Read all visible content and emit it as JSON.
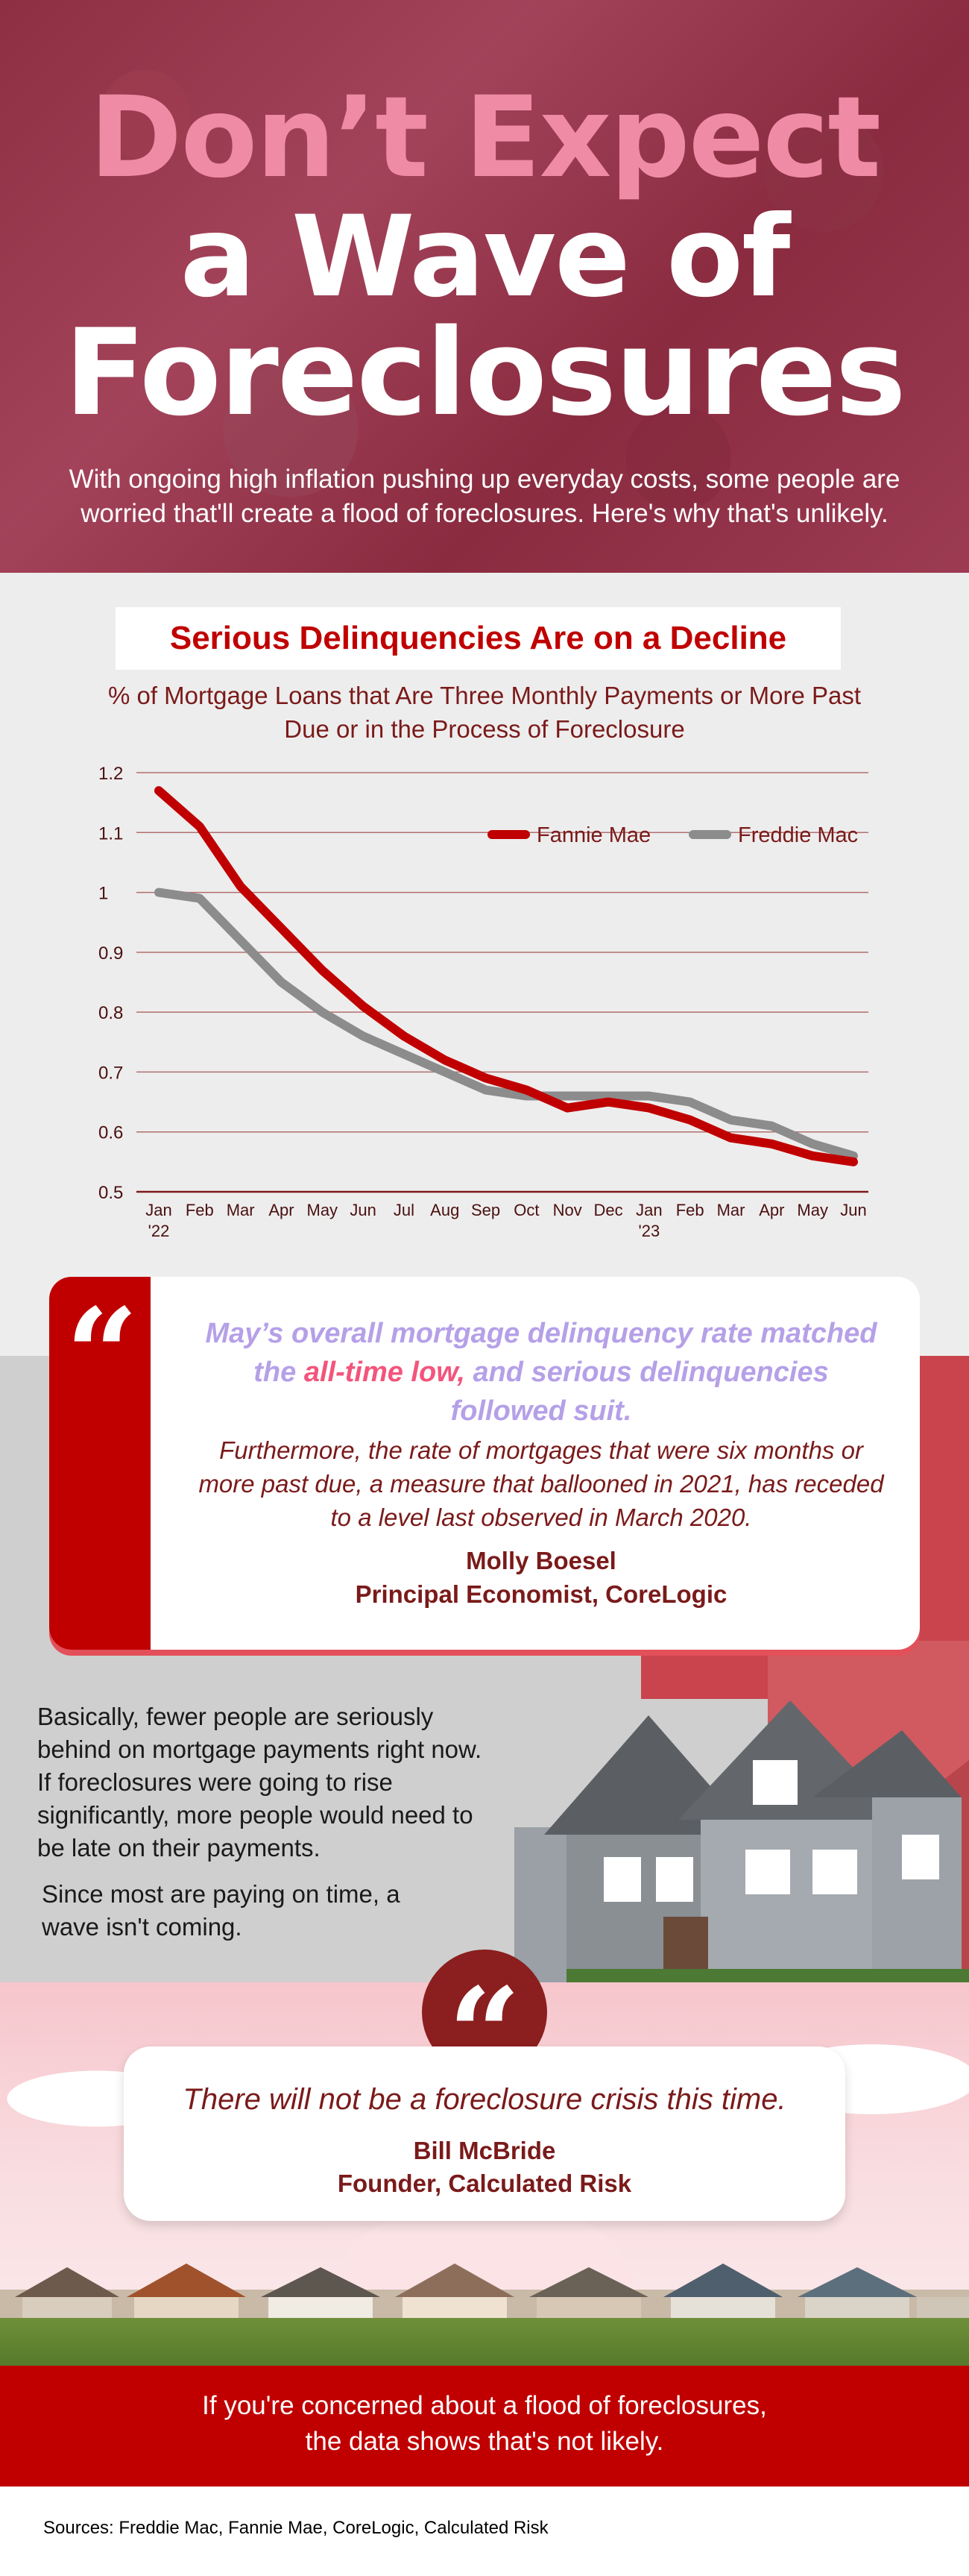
{
  "hero": {
    "title_line1": "Don’t Expect",
    "title_line2": "a Wave of",
    "title_line3": "Foreclosures",
    "subtitle": "With ongoing high inflation pushing up everyday costs, some people are worried that'll create a flood of foreclosures. Here's why that's unlikely."
  },
  "chart_section": {
    "banner": "Serious Delinquencies Are on a Decline",
    "subtitle": "% of Mortgage Loans that Are Three Monthly Payments or More Past Due or in the Process of Foreclosure"
  },
  "chart_data": {
    "type": "line",
    "title": "Serious Delinquencies Are on a Decline",
    "subtitle": "% of Mortgage Loans that Are Three Monthly Payments or More Past Due or in the Process of Foreclosure",
    "x": [
      "Jan '22",
      "Feb",
      "Mar",
      "Apr",
      "May",
      "Jun",
      "Jul",
      "Aug",
      "Sep",
      "Oct",
      "Nov",
      "Dec",
      "Jan '23",
      "Feb",
      "Mar",
      "Apr",
      "May",
      "Jun"
    ],
    "x_tick_labels": [
      [
        "Jan",
        "'22"
      ],
      [
        "Feb"
      ],
      [
        "Mar"
      ],
      [
        "Apr"
      ],
      [
        "May"
      ],
      [
        "Jun"
      ],
      [
        "Jul"
      ],
      [
        "Aug"
      ],
      [
        "Sep"
      ],
      [
        "Oct"
      ],
      [
        "Nov"
      ],
      [
        "Dec"
      ],
      [
        "Jan",
        "'23"
      ],
      [
        "Feb"
      ],
      [
        "Mar"
      ],
      [
        "Apr"
      ],
      [
        "May"
      ],
      [
        "Jun"
      ]
    ],
    "yticks": [
      "0.5",
      "0.6",
      "0.7",
      "0.8",
      "0.9",
      "1",
      "1.1",
      "1.2"
    ],
    "ylim": [
      0.5,
      1.2
    ],
    "grid": true,
    "legend_position": "top-right",
    "series": [
      {
        "name": "Fannie Mae",
        "color": "#c00000",
        "values": [
          1.17,
          1.11,
          1.01,
          0.94,
          0.87,
          0.81,
          0.76,
          0.72,
          0.69,
          0.67,
          0.64,
          0.65,
          0.64,
          0.62,
          0.59,
          0.58,
          0.56,
          0.55
        ]
      },
      {
        "name": "Freddie Mac",
        "color": "#8c8c8c",
        "values": [
          1.0,
          0.99,
          0.92,
          0.85,
          0.8,
          0.76,
          0.73,
          0.7,
          0.67,
          0.66,
          0.66,
          0.66,
          0.66,
          0.65,
          0.62,
          0.61,
          0.58,
          0.56
        ]
      }
    ]
  },
  "quote1": {
    "mark": "“",
    "lead_before": "May’s overall mortgage delinquency rate matched the ",
    "lead_highlight": "all-time low,",
    "lead_after": " and serious delinquencies followed suit.",
    "body": "Furthermore, the rate of mortgages that were six months or more past due, a measure that ballooned in 2021, has receded to a level last observed in March 2020.",
    "name": "Molly Boesel",
    "role": "Principal Economist, CoreLogic"
  },
  "middle": {
    "paragraph1": "Basically, fewer people are seriously behind on mortgage payments right now. If foreclosures were going to rise significantly, more people would need to be late on their payments.",
    "paragraph2": "Since most are paying on time, a wave isn't coming."
  },
  "quote2": {
    "mark": "“",
    "text": "There will not be a foreclosure crisis this time.",
    "name": "Bill McBride",
    "role": "Founder, Calculated Risk"
  },
  "footer": {
    "line1": "If you're concerned about a flood of foreclosures,",
    "line2": "the data shows that's not likely.",
    "sources": "Sources: Freddie Mac, Fannie Mae, CoreLogic, Calculated Risk"
  }
}
